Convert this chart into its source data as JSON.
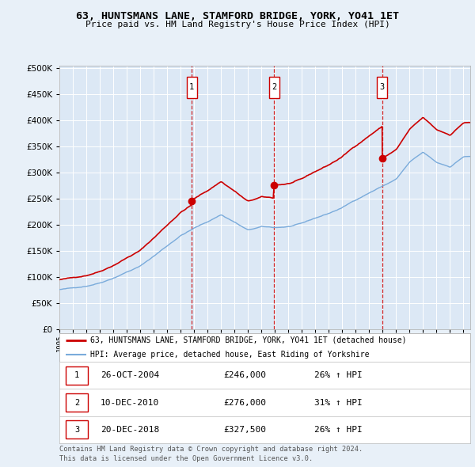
{
  "title": "63, HUNTSMANS LANE, STAMFORD BRIDGE, YORK, YO41 1ET",
  "subtitle": "Price paid vs. HM Land Registry's House Price Index (HPI)",
  "background_color": "#e8f0f8",
  "plot_bg_color": "#dce8f5",
  "ylim": [
    0,
    500000
  ],
  "yticks": [
    0,
    50000,
    100000,
    150000,
    200000,
    250000,
    300000,
    350000,
    400000,
    450000,
    500000
  ],
  "xlim_start": 1995.0,
  "xlim_end": 2025.5,
  "sale_dates": [
    2004.82,
    2010.94,
    2018.97
  ],
  "sale_prices": [
    246000,
    276000,
    327500
  ],
  "sale_labels": [
    "1",
    "2",
    "3"
  ],
  "legend_entries": [
    "63, HUNTSMANS LANE, STAMFORD BRIDGE, YORK, YO41 1ET (detached house)",
    "HPI: Average price, detached house, East Riding of Yorkshire"
  ],
  "table_rows": [
    [
      "1",
      "26-OCT-2004",
      "£246,000",
      "26% ↑ HPI"
    ],
    [
      "2",
      "10-DEC-2010",
      "£276,000",
      "31% ↑ HPI"
    ],
    [
      "3",
      "20-DEC-2018",
      "£327,500",
      "26% ↑ HPI"
    ]
  ],
  "footer": "Contains HM Land Registry data © Crown copyright and database right 2024.\nThis data is licensed under the Open Government Licence v3.0.",
  "red_line_color": "#cc0000",
  "blue_line_color": "#7aabdb",
  "dashed_line_color": "#cc0000",
  "grid_color": "#ffffff",
  "box_edge_color": "#cc0000"
}
